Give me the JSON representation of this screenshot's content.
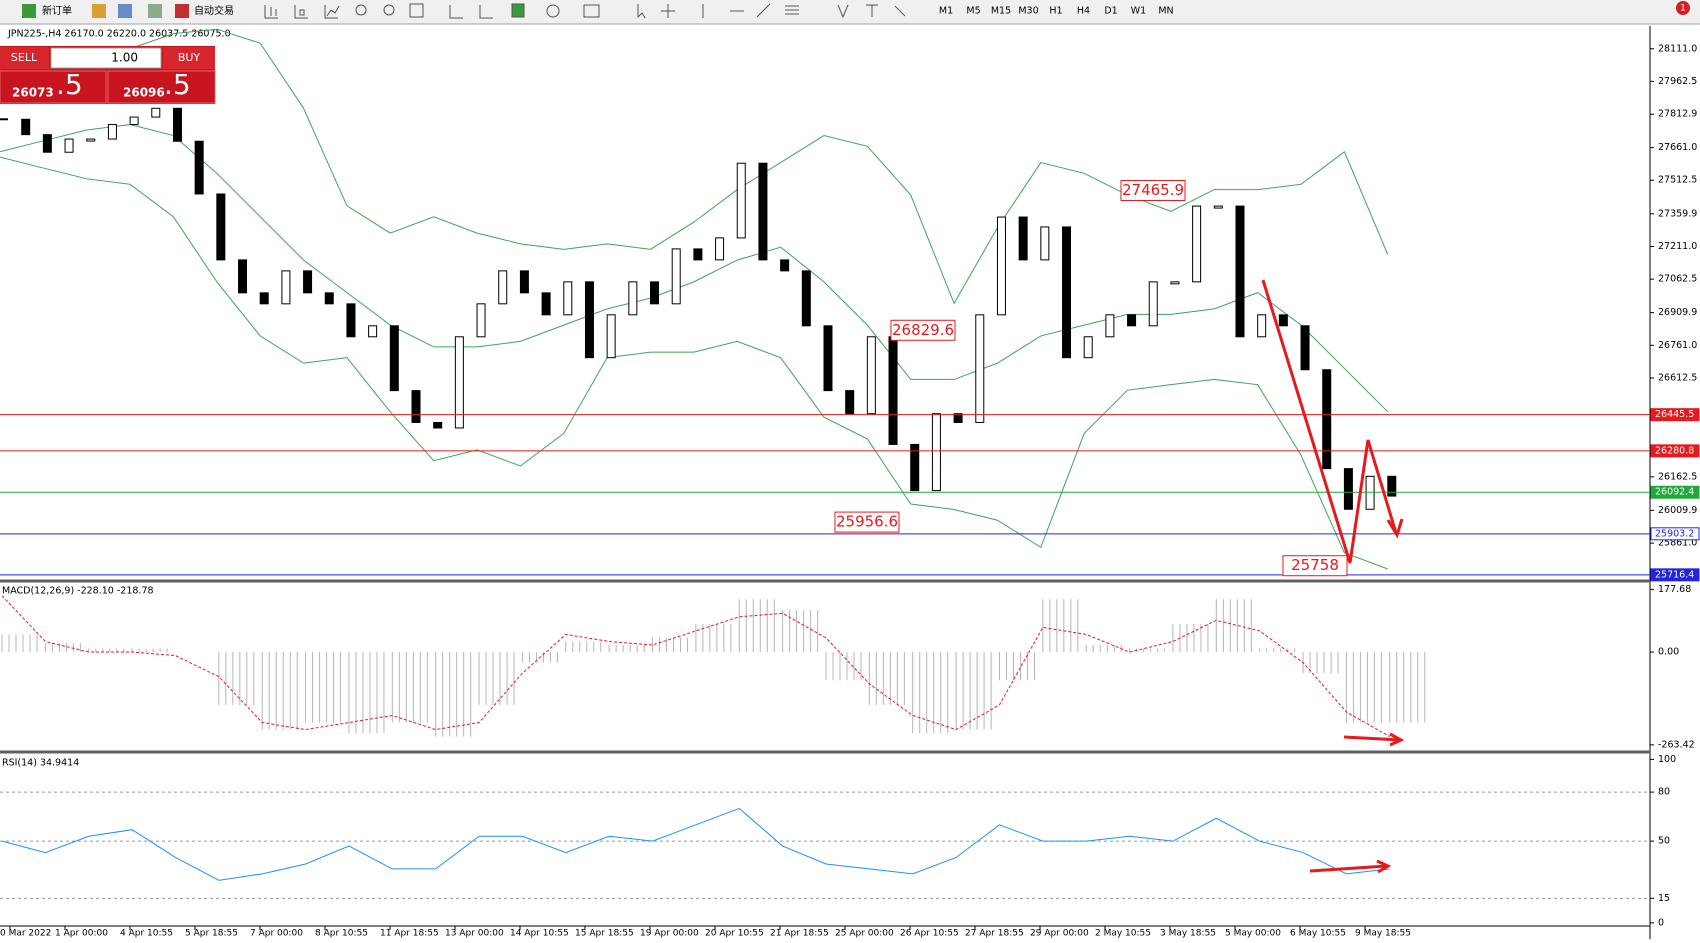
{
  "toolbar": {
    "new_order": "新订单",
    "auto_trading": "自动交易",
    "timeframes": [
      "M1",
      "M5",
      "M15",
      "M30",
      "H1",
      "H4",
      "D1",
      "W1",
      "MN"
    ],
    "alerts": "1"
  },
  "symbol_info": "JPN225-,H4  26170.0 26220.0 26037.5 26075.0",
  "trade_panel": {
    "sell": "SELL",
    "buy": "BUY",
    "lot": "1.00",
    "sell_big": "26073",
    "sell_small": ".5",
    "buy_big": "26096",
    "buy_small": ".5"
  },
  "time_labels": [
    "0 Mar 2022",
    "1 Apr 00:00",
    "4 Apr 10:55",
    "5 Apr 18:55",
    "7 Apr 00:00",
    "8 Apr 10:55",
    "11 Apr 18:55",
    "13 Apr 00:00",
    "14 Apr 10:55",
    "15 Apr 18:55",
    "19 Apr 00:00",
    "20 Apr 10:55",
    "21 Apr 18:55",
    "25 Apr 00:00",
    "26 Apr 10:55",
    "27 Apr 18:55",
    "29 Apr 00:00",
    "2 May 10:55",
    "3 May 18:55",
    "5 May 00:00",
    "6 May 10:55",
    "9 May 18:55"
  ],
  "chart_data": [
    {
      "type": "candlestick",
      "values": [
        27790,
        27720,
        27640,
        27700,
        27700,
        27766,
        27800,
        27840,
        27690,
        27450,
        27150,
        27000,
        26950,
        27100,
        27000,
        26950,
        26800,
        26850,
        26555,
        26410,
        26385,
        26800,
        26950,
        27100,
        27000,
        26900,
        27050,
        26705,
        26900,
        27050,
        26950,
        27200,
        27150,
        27250,
        27590,
        27150,
        27100,
        26850,
        26555,
        26450,
        26800,
        26310,
        26100,
        26450,
        26410,
        26900,
        27345,
        27150,
        27300,
        26705,
        26800,
        26900,
        26850,
        27050,
        27050,
        27395,
        27395,
        26800,
        26900,
        26850,
        26650,
        26200,
        26015,
        26165,
        26075
      ],
      "series": [
        {
          "name": "upper",
          "color": "#3aa655",
          "values": [
            27938,
            28037,
            28086,
            28111,
            28180,
            28200,
            28136,
            27840,
            27396,
            27272,
            27346,
            27272,
            27223,
            27198,
            27223,
            27198,
            27322,
            27470,
            27593,
            27716,
            27667,
            27445,
            26952,
            27297,
            27593,
            27544,
            27445,
            27371,
            27470,
            27470,
            27494,
            27642,
            27174
          ]
        },
        {
          "name": "middle",
          "color": "#3aa655",
          "values": [
            27642,
            27692,
            27741,
            27766,
            27716,
            27544,
            27346,
            27149,
            27001,
            26853,
            26754,
            26754,
            26779,
            26853,
            26927,
            26976,
            27050,
            27149,
            27208,
            27050,
            26853,
            26606,
            26606,
            26680,
            26804,
            26853,
            26902,
            26902,
            26927,
            27001,
            26853,
            26656,
            26458
          ]
        },
        {
          "name": "lower",
          "color": "#3aa655",
          "values": [
            27618,
            27568,
            27519,
            27494,
            27346,
            27050,
            26804,
            26680,
            26705,
            26458,
            26236,
            26285,
            26212,
            26360,
            26705,
            26730,
            26730,
            26779,
            26705,
            26434,
            26335,
            26039,
            26014,
            25965,
            25842,
            26360,
            26557,
            26582,
            26606,
            26582,
            26261,
            25817,
            25743
          ]
        }
      ],
      "hlines": [
        {
          "value": 26445.5,
          "color": "#e8191d"
        },
        {
          "value": 26280.8,
          "color": "#e8191d"
        },
        {
          "value": 26092.4,
          "color": "#22a83a"
        },
        {
          "value": 25903.2,
          "color": "#2323e0"
        },
        {
          "value": 25716.4,
          "color": "#2323e0"
        }
      ],
      "annotations": [
        27465.9,
        26829.6,
        25956.6,
        25758.0
      ],
      "ylim": [
        25693,
        28210
      ],
      "yticks": [
        {
          "value": 28111.0,
          "label": "28111.0"
        },
        {
          "value": 27962.5,
          "label": "27962.5"
        },
        {
          "value": 27812.9,
          "label": "27812.9"
        },
        {
          "value": 27661.0,
          "label": "27661.0"
        },
        {
          "value": 27512.5,
          "label": "27512.5"
        },
        {
          "value": 27359.9,
          "label": "27359.9"
        },
        {
          "value": 27211.0,
          "label": "27211.0"
        },
        {
          "value": 27062.5,
          "label": "27062.5"
        },
        {
          "value": 26909.9,
          "label": "26909.9"
        },
        {
          "value": 26761.0,
          "label": "26761.0"
        },
        {
          "value": 26612.5,
          "label": "26612.5"
        },
        {
          "value": 26162.5,
          "label": "26162.5"
        },
        {
          "value": 26009.9,
          "label": "26009.9"
        },
        {
          "value": 25861.0,
          "label": "25861.0"
        }
      ]
    },
    {
      "type": "macd",
      "title": "MACD(12,26,9) -228.10 -218.78",
      "series": [
        {
          "name": "histogram",
          "color": "#b4b4b4",
          "values": [
            50,
            25,
            10,
            10,
            0,
            -150,
            -220,
            -200,
            -230,
            -200,
            -240,
            -150,
            -30,
            30,
            20,
            40,
            80,
            150,
            120,
            -80,
            -150,
            -230,
            -220,
            -80,
            150,
            20,
            10,
            80,
            150,
            10,
            -60,
            -200,
            -200
          ]
        },
        {
          "name": "signal",
          "color": "#e8191d",
          "values": [
            160,
            30,
            0,
            0,
            -10,
            -70,
            -200,
            -220,
            -200,
            -180,
            -220,
            -200,
            -60,
            50,
            30,
            20,
            60,
            100,
            110,
            40,
            -90,
            -180,
            -220,
            -150,
            70,
            50,
            0,
            30,
            90,
            60,
            -30,
            -170,
            -240
          ]
        }
      ],
      "ylim": [
        -278,
        196
      ],
      "yticks": [
        {
          "value": 177.68,
          "label": "177.68"
        },
        {
          "value": 0,
          "label": "0.00"
        },
        {
          "value": -263.42,
          "label": "-263.42"
        }
      ]
    },
    {
      "type": "rsi",
      "title": "RSI(14) 34.9414",
      "values": [
        50,
        43,
        53,
        57,
        40,
        26,
        30,
        36,
        47,
        33,
        33,
        53,
        53,
        43,
        53,
        50,
        60,
        70,
        47,
        36,
        33,
        30,
        40,
        60,
        50,
        50,
        53,
        50,
        64,
        50,
        43,
        30,
        33
      ],
      "color": "#1e90ff",
      "levels": [
        80,
        50,
        15
      ],
      "ylim": [
        -0.7,
        102.7
      ],
      "yticks": [
        100,
        80,
        50,
        15,
        0
      ]
    }
  ]
}
